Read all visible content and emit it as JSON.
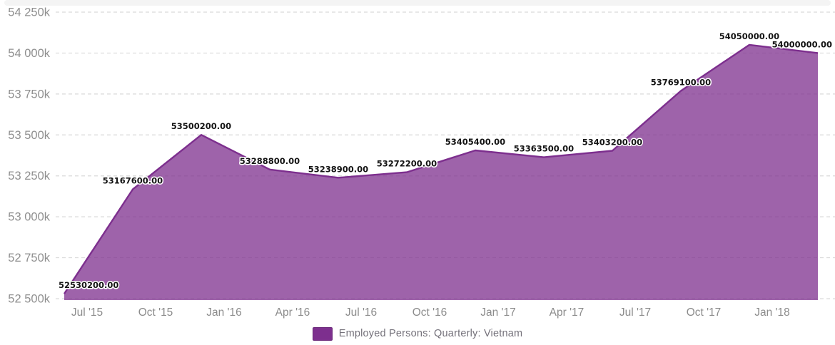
{
  "legend": {
    "label": "Employed Persons: Quarterly: Vietnam"
  },
  "chart_data": {
    "type": "area",
    "title": "",
    "xlabel": "",
    "ylabel": "",
    "ylim": [
      52500000,
      54250000
    ],
    "grid": "horizontal-dashed",
    "legend_position": "bottom-center",
    "y_ticks": [
      {
        "value": 54250000,
        "label": "54 250k"
      },
      {
        "value": 54000000,
        "label": "54 000k"
      },
      {
        "value": 53750000,
        "label": "53 750k"
      },
      {
        "value": 53500000,
        "label": "53 500k"
      },
      {
        "value": 53250000,
        "label": "53 250k"
      },
      {
        "value": 53000000,
        "label": "53 000k"
      },
      {
        "value": 52750000,
        "label": "52 750k"
      },
      {
        "value": 52500000,
        "label": "52 500k"
      }
    ],
    "x_tick_labels": [
      "Jul '15",
      "Oct '15",
      "Jan '16",
      "Apr '16",
      "Jul '16",
      "Oct '16",
      "Jan '17",
      "Apr '17",
      "Jul '17",
      "Oct '17",
      "Jan '18"
    ],
    "series": [
      {
        "name": "Employed Persons: Quarterly: Vietnam",
        "color": "#7d2f8e",
        "fill_opacity": 0.75,
        "values": [
          52530200,
          53167600,
          53500200,
          53288800,
          53238900,
          53272200,
          53405400,
          53363500,
          53403200,
          53769100,
          54050000,
          54000000
        ],
        "value_labels": [
          "52530200.00",
          "53167600.00",
          "53500200.00",
          "53288800.00",
          "53238900.00",
          "53272200.00",
          "53405400.00",
          "53363500.00",
          "53403200.00",
          "53769100.00",
          "54050000.00",
          "54000000.00"
        ]
      }
    ],
    "colors": {
      "gridline": "#d9d9d9",
      "axis_text": "#8f8f8f",
      "data_label_text": "#141414"
    }
  }
}
